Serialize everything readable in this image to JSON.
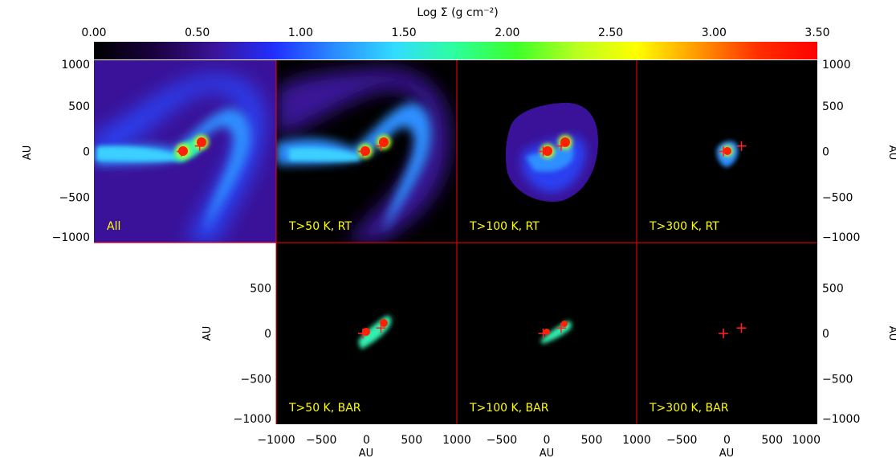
{
  "chart_data": {
    "type": "heatmap",
    "colorbar": {
      "title": "Log Σ (g cm⁻²)",
      "range": [
        0.0,
        3.5
      ],
      "ticks": [
        "0.00",
        "0.50",
        "1.00",
        "1.50",
        "2.00",
        "2.50",
        "3.00",
        "3.50"
      ],
      "colormap": [
        "#000000",
        "#1a0040",
        "#3b1499",
        "#2030ff",
        "#2a8cff",
        "#32dcff",
        "#2cff9a",
        "#3cff2a",
        "#b8ff20",
        "#ffff00",
        "#ff9a00",
        "#ff3000",
        "#ff0000"
      ]
    },
    "axes": {
      "x_label": "AU",
      "y_label": "AU",
      "x_range": [
        -1000,
        1000
      ],
      "y_range": [
        -1000,
        1000
      ],
      "top_row_y_ticks": [
        "1000",
        "500",
        "0",
        "−500",
        "−1000"
      ],
      "bottom_row_y_ticks": [
        "500",
        "0",
        "−500",
        "−1000"
      ],
      "right_top_y_ticks": [
        "1000",
        "500",
        "0",
        "−500",
        "−1000"
      ],
      "right_bottom_y_ticks": [
        "500",
        "0",
        "−500",
        "−1000"
      ],
      "x_ticks_first": [
        "−1000",
        "−500",
        "0",
        "500",
        "1000"
      ],
      "x_ticks_other": [
        "−500",
        "0",
        "500",
        "1000"
      ]
    },
    "panels": [
      {
        "row": 0,
        "col": 0,
        "label": "All"
      },
      {
        "row": 0,
        "col": 1,
        "label": "T>50  K, RT"
      },
      {
        "row": 0,
        "col": 2,
        "label": "T>100  K, RT"
      },
      {
        "row": 0,
        "col": 3,
        "label": "T>300  K, RT"
      },
      {
        "row": 1,
        "col": 1,
        "label": "T>50  K, BAR"
      },
      {
        "row": 1,
        "col": 2,
        "label": "T>100  K, BAR"
      },
      {
        "row": 1,
        "col": 3,
        "label": "T>300  K, BAR"
      }
    ],
    "sink_particles_au": [
      [
        -40,
        0
      ],
      [
        160,
        60
      ]
    ]
  }
}
